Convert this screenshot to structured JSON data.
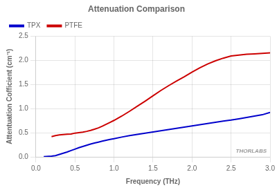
{
  "chart_data": {
    "type": "line",
    "title": "Attenuation Comparison",
    "x_label": "Frequency (THz)",
    "y_label": "Attentuation Cofficient (cm⁻¹)",
    "xlim": [
      0.0,
      3.0
    ],
    "ylim": [
      0.0,
      2.5
    ],
    "xticks": [
      {
        "value": 0,
        "label": "0.0"
      },
      0.5,
      {
        "value": 1,
        "label": "1.0"
      },
      1.5,
      {
        "value": 2,
        "label": "2.0"
      },
      2.5,
      {
        "value": 3,
        "label": "3.0"
      }
    ],
    "yticks": [
      {
        "value": 0,
        "label": "0.0"
      },
      0.5,
      {
        "value": 1,
        "label": "1.0"
      },
      1.5,
      {
        "value": 2,
        "label": "2.0"
      },
      2.5
    ],
    "grid": true,
    "legend": "upper left",
    "annotations": [
      "THORLABS"
    ],
    "series": [
      {
        "name": "TPX",
        "color": "#0000cc",
        "x": [
          0.1,
          0.2,
          0.25,
          0.3,
          0.35,
          0.4,
          0.45,
          0.5,
          0.55,
          0.6,
          0.65,
          0.7,
          0.75,
          0.8,
          0.85,
          0.9,
          0.95,
          1.0,
          1.1,
          1.2,
          1.3,
          1.4,
          1.5,
          1.6,
          1.7,
          1.8,
          1.9,
          2.0,
          2.1,
          2.2,
          2.3,
          2.4,
          2.5,
          2.6,
          2.7,
          2.8,
          2.9,
          3.0
        ],
        "values": [
          0.003,
          0.015,
          0.025,
          0.05,
          0.075,
          0.1,
          0.13,
          0.16,
          0.19,
          0.215,
          0.24,
          0.265,
          0.285,
          0.305,
          0.325,
          0.345,
          0.36,
          0.375,
          0.41,
          0.44,
          0.465,
          0.49,
          0.515,
          0.54,
          0.565,
          0.59,
          0.615,
          0.64,
          0.665,
          0.69,
          0.715,
          0.74,
          0.762,
          0.788,
          0.815,
          0.845,
          0.872,
          0.92
        ]
      },
      {
        "name": "PTFE",
        "color": "#cc0000",
        "x": [
          0.2,
          0.25,
          0.3,
          0.35,
          0.4,
          0.45,
          0.5,
          0.55,
          0.6,
          0.65,
          0.7,
          0.75,
          0.8,
          0.85,
          0.9,
          0.95,
          1.0,
          1.1,
          1.2,
          1.3,
          1.4,
          1.5,
          1.6,
          1.7,
          1.8,
          1.9,
          2.0,
          2.1,
          2.2,
          2.3,
          2.4,
          2.5,
          2.6,
          2.7,
          2.8,
          2.9,
          3.0
        ],
        "values": [
          0.42,
          0.44,
          0.455,
          0.462,
          0.468,
          0.472,
          0.492,
          0.502,
          0.512,
          0.528,
          0.548,
          0.572,
          0.6,
          0.635,
          0.675,
          0.715,
          0.755,
          0.845,
          0.945,
          1.05,
          1.155,
          1.265,
          1.375,
          1.475,
          1.57,
          1.66,
          1.755,
          1.845,
          1.925,
          1.99,
          2.045,
          2.09,
          2.11,
          2.125,
          2.135,
          2.145,
          2.155
        ]
      }
    ]
  }
}
